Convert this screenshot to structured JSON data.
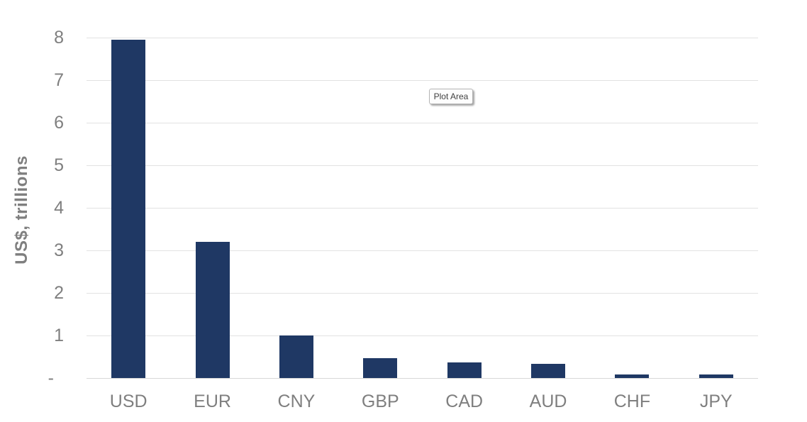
{
  "chart_data": {
    "type": "bar",
    "title": "",
    "categories": [
      "USD",
      "EUR",
      "CNY",
      "GBP",
      "CAD",
      "AUD",
      "CHF",
      "JPY"
    ],
    "values": [
      7.95,
      3.2,
      1.0,
      0.47,
      0.36,
      0.34,
      0.09,
      0.09
    ],
    "xlabel": "",
    "ylabel": "US$, trillions",
    "ylim": [
      0,
      8
    ],
    "ytick_values": [
      8,
      7,
      6,
      5,
      4,
      3,
      2,
      1
    ],
    "ytick_labels": [
      "8",
      "7",
      "6",
      "5",
      "4",
      "3",
      "2",
      "1"
    ],
    "zero_tick_label": "-",
    "grid": true,
    "legend": "none",
    "bar_color": "#1F3864",
    "gridline_color": "#E2E2E2",
    "axis_text_color": "#7F7F7F"
  },
  "tooltip": {
    "label": "Plot Area"
  }
}
